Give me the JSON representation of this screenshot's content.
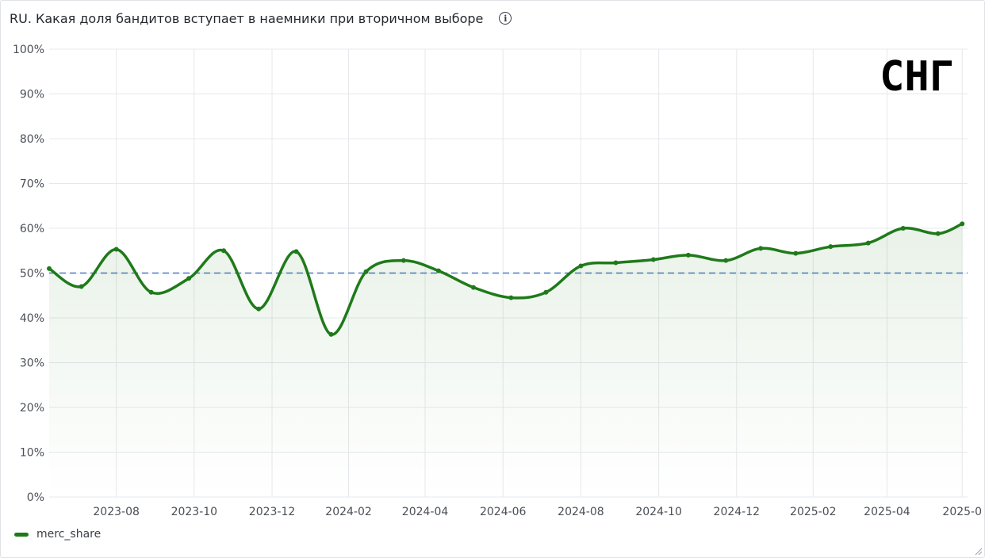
{
  "panel": {
    "title": "RU. Какая доля бандитов вступает в наемники при вторичном выборе",
    "info_icon": "info-icon",
    "watermark": "СНГ"
  },
  "chart_data": {
    "type": "line",
    "title": "RU. Какая доля бандитов вступает в наемники при вторичном выборе",
    "xlabel": "",
    "ylabel": "",
    "ylim": [
      0,
      100
    ],
    "y_ticks": [
      "0%",
      "10%",
      "20%",
      "30%",
      "40%",
      "50%",
      "60%",
      "70%",
      "80%",
      "90%",
      "100%"
    ],
    "x_range": [
      0,
      34.2
    ],
    "x_ticks": [
      {
        "label": "2023-08",
        "x": 2.5
      },
      {
        "label": "2023-10",
        "x": 5.4
      },
      {
        "label": "2023-12",
        "x": 8.3
      },
      {
        "label": "2024-02",
        "x": 11.15
      },
      {
        "label": "2024-04",
        "x": 14.0
      },
      {
        "label": "2024-06",
        "x": 16.9
      },
      {
        "label": "2024-08",
        "x": 19.8
      },
      {
        "label": "2024-10",
        "x": 22.7
      },
      {
        "label": "2024-12",
        "x": 25.6
      },
      {
        "label": "2025-02",
        "x": 28.45
      },
      {
        "label": "2025-04",
        "x": 31.2
      },
      {
        "label": "2025-0",
        "x": 34.0
      }
    ],
    "reference_line": {
      "value": 50,
      "color": "#4a78c2",
      "style": "dashed"
    },
    "series": [
      {
        "name": "merc_share",
        "color": "#1f7a1a",
        "x": [
          0,
          1.2,
          2.5,
          3.8,
          5.2,
          6.5,
          7.8,
          9.2,
          10.5,
          11.8,
          13.2,
          14.5,
          15.8,
          17.2,
          18.5,
          19.8,
          21.1,
          22.5,
          23.8,
          25.2,
          26.5,
          27.8,
          29.1,
          30.5,
          31.8,
          33.1,
          34.0
        ],
        "values": [
          51,
          47,
          55.3,
          45.7,
          48.8,
          55,
          42,
          54.8,
          36.3,
          50.3,
          52.8,
          50.5,
          46.8,
          44.5,
          45.7,
          51.6,
          52.3,
          53,
          54,
          52.8,
          55.5,
          54.4,
          55.9,
          56.7,
          60,
          58.8,
          61
        ]
      }
    ],
    "legend": [
      "merc_share"
    ]
  }
}
